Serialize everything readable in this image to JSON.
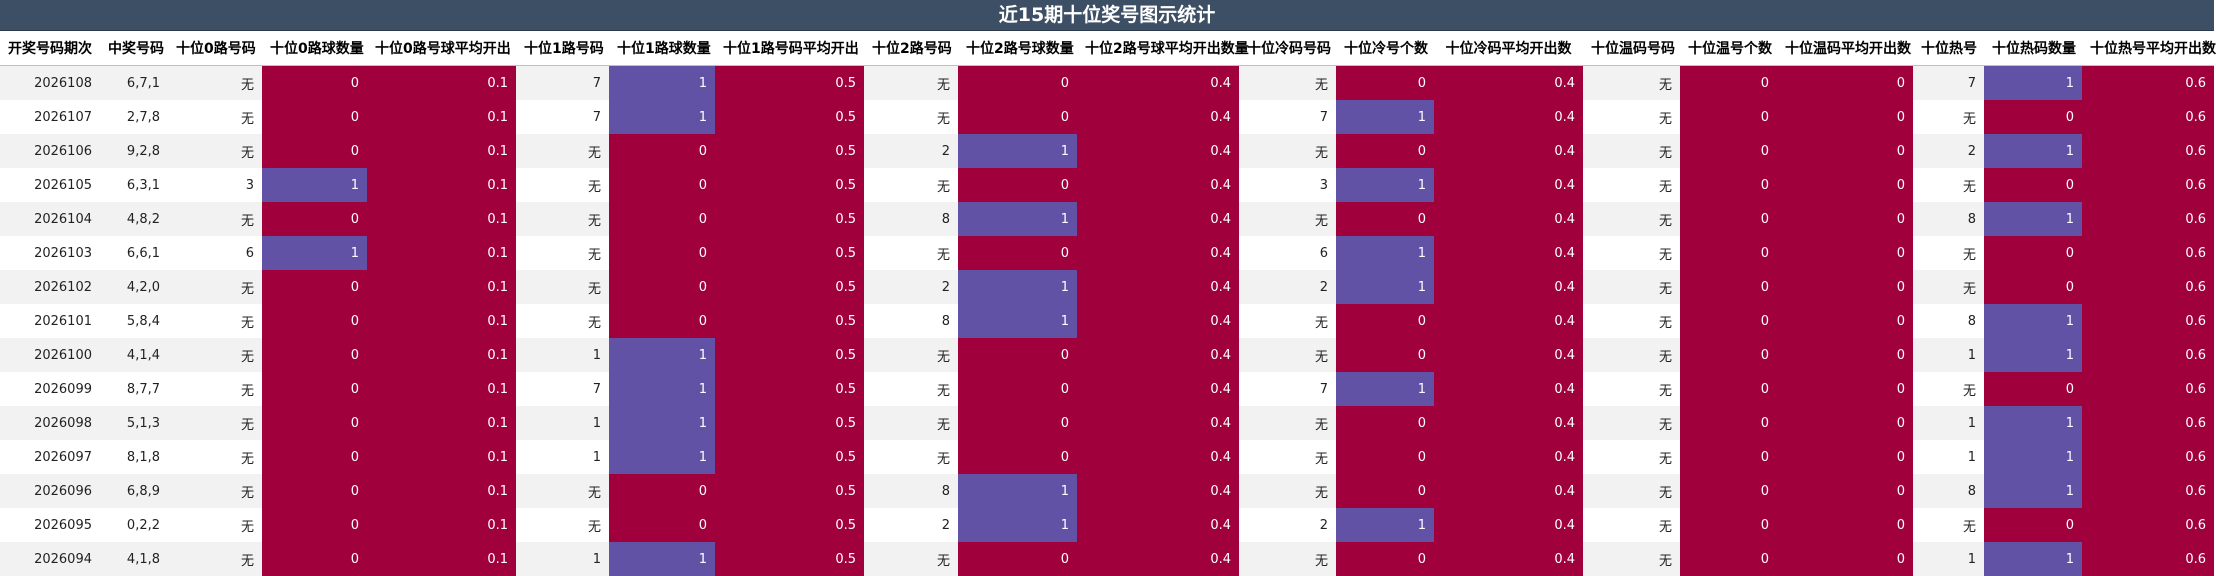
{
  "title": "近15期十位奖号图示统计",
  "headers": [
    "开奖号码期次",
    "中奖号码",
    "十位0路号码",
    "十位0路球数量",
    "十位0路号球平均开出",
    "十位1路号码",
    "十位1路球数量",
    "十位1路号码平均开出",
    "十位2路号码",
    "十位2路号球数量",
    "十位2路号球平均开出数量",
    "十位冷码号码",
    "十位冷号个数",
    "十位冷码平均开出数",
    "十位温码号码",
    "十位温号个数",
    "十位温码平均开出数",
    "十位热号",
    "十位热码数量",
    "十位热号平均开出数"
  ],
  "rows": [
    [
      "2026108",
      "6,7,1",
      "无",
      "0",
      "0.1",
      "7",
      "1",
      "0.5",
      "无",
      "0",
      "0.4",
      "无",
      "0",
      "0.4",
      "无",
      "0",
      "0",
      "7",
      "1",
      "0.6"
    ],
    [
      "2026107",
      "2,7,8",
      "无",
      "0",
      "0.1",
      "7",
      "1",
      "0.5",
      "无",
      "0",
      "0.4",
      "7",
      "1",
      "0.4",
      "无",
      "0",
      "0",
      "无",
      "0",
      "0.6"
    ],
    [
      "2026106",
      "9,2,8",
      "无",
      "0",
      "0.1",
      "无",
      "0",
      "0.5",
      "2",
      "1",
      "0.4",
      "无",
      "0",
      "0.4",
      "无",
      "0",
      "0",
      "2",
      "1",
      "0.6"
    ],
    [
      "2026105",
      "6,3,1",
      "3",
      "1",
      "0.1",
      "无",
      "0",
      "0.5",
      "无",
      "0",
      "0.4",
      "3",
      "1",
      "0.4",
      "无",
      "0",
      "0",
      "无",
      "0",
      "0.6"
    ],
    [
      "2026104",
      "4,8,2",
      "无",
      "0",
      "0.1",
      "无",
      "0",
      "0.5",
      "8",
      "1",
      "0.4",
      "无",
      "0",
      "0.4",
      "无",
      "0",
      "0",
      "8",
      "1",
      "0.6"
    ],
    [
      "2026103",
      "6,6,1",
      "6",
      "1",
      "0.1",
      "无",
      "0",
      "0.5",
      "无",
      "0",
      "0.4",
      "6",
      "1",
      "0.4",
      "无",
      "0",
      "0",
      "无",
      "0",
      "0.6"
    ],
    [
      "2026102",
      "4,2,0",
      "无",
      "0",
      "0.1",
      "无",
      "0",
      "0.5",
      "2",
      "1",
      "0.4",
      "2",
      "1",
      "0.4",
      "无",
      "0",
      "0",
      "无",
      "0",
      "0.6"
    ],
    [
      "2026101",
      "5,8,4",
      "无",
      "0",
      "0.1",
      "无",
      "0",
      "0.5",
      "8",
      "1",
      "0.4",
      "无",
      "0",
      "0.4",
      "无",
      "0",
      "0",
      "8",
      "1",
      "0.6"
    ],
    [
      "2026100",
      "4,1,4",
      "无",
      "0",
      "0.1",
      "1",
      "1",
      "0.5",
      "无",
      "0",
      "0.4",
      "无",
      "0",
      "0.4",
      "无",
      "0",
      "0",
      "1",
      "1",
      "0.6"
    ],
    [
      "2026099",
      "8,7,7",
      "无",
      "0",
      "0.1",
      "7",
      "1",
      "0.5",
      "无",
      "0",
      "0.4",
      "7",
      "1",
      "0.4",
      "无",
      "0",
      "0",
      "无",
      "0",
      "0.6"
    ],
    [
      "2026098",
      "5,1,3",
      "无",
      "0",
      "0.1",
      "1",
      "1",
      "0.5",
      "无",
      "0",
      "0.4",
      "无",
      "0",
      "0.4",
      "无",
      "0",
      "0",
      "1",
      "1",
      "0.6"
    ],
    [
      "2026097",
      "8,1,8",
      "无",
      "0",
      "0.1",
      "1",
      "1",
      "0.5",
      "无",
      "0",
      "0.4",
      "无",
      "0",
      "0.4",
      "无",
      "0",
      "0",
      "1",
      "1",
      "0.6"
    ],
    [
      "2026096",
      "6,8,9",
      "无",
      "0",
      "0.1",
      "无",
      "0",
      "0.5",
      "8",
      "1",
      "0.4",
      "无",
      "0",
      "0.4",
      "无",
      "0",
      "0",
      "8",
      "1",
      "0.6"
    ],
    [
      "2026095",
      "0,2,2",
      "无",
      "0",
      "0.1",
      "无",
      "0",
      "0.5",
      "2",
      "1",
      "0.4",
      "2",
      "1",
      "0.4",
      "无",
      "0",
      "0",
      "无",
      "0",
      "0.6"
    ],
    [
      "2026094",
      "4,1,8",
      "无",
      "0",
      "0.1",
      "1",
      "1",
      "0.5",
      "无",
      "0",
      "0.4",
      "无",
      "0",
      "0.4",
      "无",
      "0",
      "0",
      "1",
      "1",
      "0.6"
    ]
  ],
  "colors": {
    "header_bar": "#3d4f64",
    "zero_cell": "#a0003c",
    "hit_cell": "#6252a6",
    "row_alt": "#f2f2f2"
  }
}
